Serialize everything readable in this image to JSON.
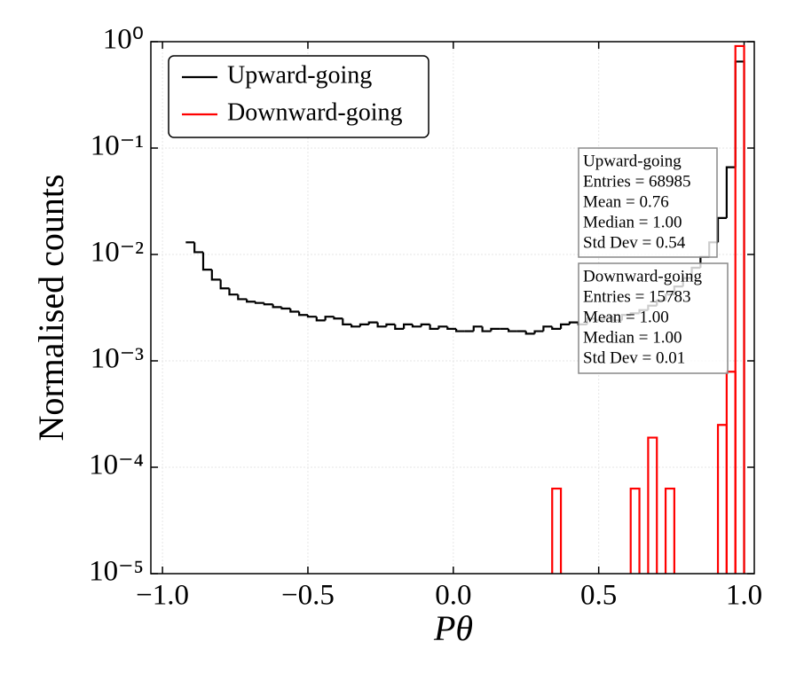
{
  "chart_data": {
    "type": "histogram",
    "ylabel": "Normalised counts",
    "xlabel": "Pθ",
    "xlim": [
      -1.04,
      1.035
    ],
    "ylim": [
      1e-05,
      1
    ],
    "ylog": true,
    "grid": true,
    "legend": "upper left",
    "xticks": [
      {
        "value": -1,
        "label": "−1.0"
      },
      {
        "value": -0.5,
        "label": "−0.5"
      },
      {
        "value": 0,
        "label": "0.0"
      },
      0.5,
      {
        "value": 1,
        "label": "1.0"
      }
    ],
    "yticks": [
      {
        "value": 1e-05,
        "label": "10⁻⁵"
      },
      {
        "value": 0.0001,
        "label": "10⁻⁴"
      },
      {
        "value": 0.001,
        "label": "10⁻³"
      },
      {
        "value": 0.01,
        "label": "10⁻²"
      },
      {
        "value": 0.1,
        "label": "10⁻¹"
      },
      {
        "value": 1,
        "label": "10⁰"
      }
    ],
    "bins": [
      -0.92,
      -0.89,
      -0.86,
      -0.83,
      -0.8,
      -0.77,
      -0.74,
      -0.71,
      -0.68,
      -0.65,
      -0.62,
      -0.59,
      -0.56,
      -0.53,
      -0.5,
      -0.47,
      -0.44,
      -0.41,
      -0.38,
      -0.35,
      -0.32,
      -0.29,
      -0.26,
      -0.23,
      -0.2,
      -0.17,
      -0.14,
      -0.11,
      -0.08,
      -0.05,
      -0.02,
      0.01,
      0.04,
      0.07,
      0.1,
      0.13,
      0.16,
      0.19,
      0.22,
      0.25,
      0.28,
      0.31,
      0.34,
      0.37,
      0.4,
      0.43,
      0.46,
      0.49,
      0.52,
      0.55,
      0.58,
      0.61,
      0.64,
      0.67,
      0.7,
      0.73,
      0.76,
      0.79,
      0.82,
      0.85,
      0.88,
      0.91,
      0.94,
      0.97,
      1.0
    ],
    "series": [
      {
        "name": "Upward-going",
        "color": "#000000",
        "values": [
          0.013,
          0.0105,
          0.0072,
          0.0058,
          0.0048,
          0.0042,
          0.0038,
          0.0036,
          0.0035,
          0.0034,
          0.0032,
          0.0031,
          0.0029,
          0.0027,
          0.0026,
          0.0024,
          0.0026,
          0.0025,
          0.0022,
          0.0021,
          0.0022,
          0.0023,
          0.0021,
          0.0022,
          0.002,
          0.0022,
          0.0021,
          0.0022,
          0.002,
          0.0021,
          0.002,
          0.0019,
          0.0019,
          0.0021,
          0.0019,
          0.002,
          0.002,
          0.0019,
          0.0019,
          0.0018,
          0.0019,
          0.0021,
          0.002,
          0.0022,
          0.0023,
          0.0022,
          0.0025,
          0.0024,
          0.0026,
          0.0024,
          0.0027,
          0.0028,
          0.003,
          0.0033,
          0.0037,
          0.0042,
          0.005,
          0.006,
          0.0075,
          0.0095,
          0.013,
          0.022,
          0.066,
          0.65
        ]
      },
      {
        "name": "Downward-going",
        "color": "#ff0000",
        "values": [
          null,
          null,
          null,
          null,
          null,
          null,
          null,
          null,
          null,
          null,
          null,
          null,
          null,
          null,
          null,
          null,
          null,
          null,
          null,
          null,
          null,
          null,
          null,
          null,
          null,
          null,
          null,
          null,
          null,
          null,
          null,
          null,
          null,
          null,
          null,
          null,
          null,
          null,
          null,
          null,
          null,
          null,
          6.3e-05,
          null,
          null,
          null,
          null,
          null,
          null,
          null,
          null,
          6.3e-05,
          null,
          0.00019,
          null,
          6.3e-05,
          null,
          null,
          null,
          null,
          null,
          0.00025,
          0.00079,
          0.91
        ]
      }
    ],
    "stats_boxes": [
      {
        "lines": [
          "Upward-going",
          "Entries = 68985",
          "Mean = 0.76",
          "Median = 1.00",
          "Std Dev = 0.54"
        ]
      },
      {
        "lines": [
          "Downward-going",
          "Entries = 15783",
          "Mean = 1.00",
          "Median = 1.00",
          "Std Dev = 0.01"
        ]
      }
    ]
  }
}
